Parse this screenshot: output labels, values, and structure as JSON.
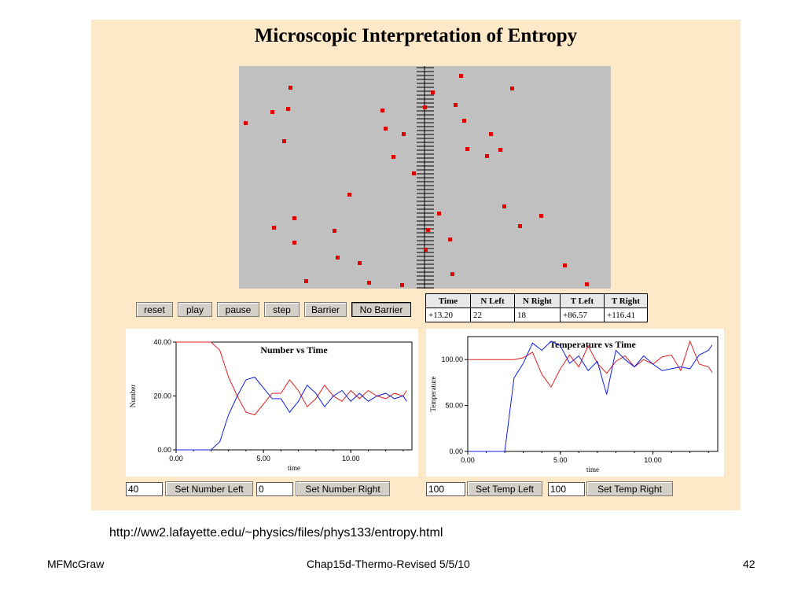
{
  "title": "Microscopic Interpretation of Entropy",
  "buttons": {
    "reset": "reset",
    "play": "play",
    "pause": "pause",
    "step": "step",
    "barrier": "Barrier",
    "no_barrier": "No Barrier"
  },
  "table": {
    "headers": [
      "Time",
      "N Left",
      "N Right",
      "T Left",
      "T Right"
    ],
    "values": [
      "+13.20",
      "22",
      "18",
      "+86.57",
      "+116.41"
    ]
  },
  "chart_data": [
    {
      "type": "line",
      "title": "Number vs Time",
      "xlabel": "time",
      "ylabel": "Number",
      "xlim": [
        0,
        13.5
      ],
      "ylim": [
        0,
        40
      ],
      "xticks": [
        "0.00",
        "5.00",
        "10.00"
      ],
      "yticks": [
        "0.00",
        "20.00",
        "40.00"
      ],
      "colors": [
        "#e02020",
        "#1020e0"
      ],
      "series": [
        {
          "x": [
            0,
            1,
            2,
            2.5,
            3,
            3.5,
            4,
            4.5,
            5,
            5.5,
            6,
            6.5,
            7,
            7.5,
            8,
            8.5,
            9,
            9.5,
            10,
            10.5,
            11,
            11.5,
            12,
            12.5,
            13,
            13.2
          ],
          "values": [
            40,
            40,
            40,
            37,
            27,
            20,
            14,
            13,
            17,
            21,
            21,
            26,
            22,
            16,
            19,
            24,
            20,
            18,
            22,
            19,
            22,
            20,
            19,
            21,
            20,
            22
          ]
        },
        {
          "x": [
            0,
            1,
            2,
            2.5,
            3,
            3.5,
            4,
            4.5,
            5,
            5.5,
            6,
            6.5,
            7,
            7.5,
            8,
            8.5,
            9,
            9.5,
            10,
            10.5,
            11,
            11.5,
            12,
            12.5,
            13,
            13.2
          ],
          "values": [
            0,
            0,
            0,
            3,
            13,
            20,
            26,
            27,
            23,
            19,
            19,
            14,
            18,
            24,
            21,
            16,
            20,
            22,
            18,
            21,
            18,
            20,
            21,
            19,
            20,
            18
          ]
        }
      ]
    },
    {
      "type": "line",
      "title": "Temperature vs Time",
      "xlabel": "time",
      "ylabel": "Temperature",
      "xlim": [
        0,
        13.5
      ],
      "ylim": [
        0,
        125
      ],
      "xticks": [
        "0.00",
        "5.00",
        "10.00"
      ],
      "yticks": [
        "0.00",
        "50.00",
        "100.00"
      ],
      "colors": [
        "#e02020",
        "#1020e0"
      ],
      "series": [
        {
          "x": [
            0,
            1,
            2,
            2.5,
            3,
            3.5,
            4,
            4.5,
            5,
            5.5,
            6,
            6.5,
            7,
            7.5,
            8,
            8.5,
            9,
            9.5,
            10,
            10.5,
            11,
            11.5,
            12,
            12.5,
            13,
            13.2
          ],
          "values": [
            100,
            100,
            100,
            100,
            102,
            108,
            84,
            70,
            90,
            105,
            92,
            115,
            96,
            85,
            98,
            104,
            92,
            100,
            95,
            103,
            105,
            88,
            120,
            95,
            92,
            86
          ]
        },
        {
          "x": [
            0,
            1,
            2,
            2.5,
            3,
            3.5,
            4,
            4.5,
            5,
            5.5,
            6,
            6.5,
            7,
            7.5,
            8,
            8.5,
            9,
            9.5,
            10,
            10.5,
            11,
            11.5,
            12,
            12.5,
            13,
            13.2
          ],
          "values": [
            0,
            0,
            0,
            80,
            96,
            118,
            110,
            120,
            115,
            96,
            104,
            88,
            98,
            62,
            110,
            100,
            92,
            104,
            95,
            88,
            90,
            92,
            90,
            105,
            110,
            116
          ]
        }
      ]
    }
  ],
  "controls": {
    "number_left_value": "40",
    "set_number_left": "Set Number Left",
    "number_right_value": "0",
    "set_number_right": "Set Number Right",
    "temp_left_value": "100",
    "set_temp_left": "Set Temp Left",
    "temp_right_value": "100",
    "set_temp_right": "Set Temp Right"
  },
  "url": "http://ww2.lafayette.edu/~physics/files/phys133/entropy.html",
  "footer": {
    "left": "MFMcGraw",
    "center": "Chap15d-Thermo-Revised 5/5/10",
    "right": "42"
  }
}
